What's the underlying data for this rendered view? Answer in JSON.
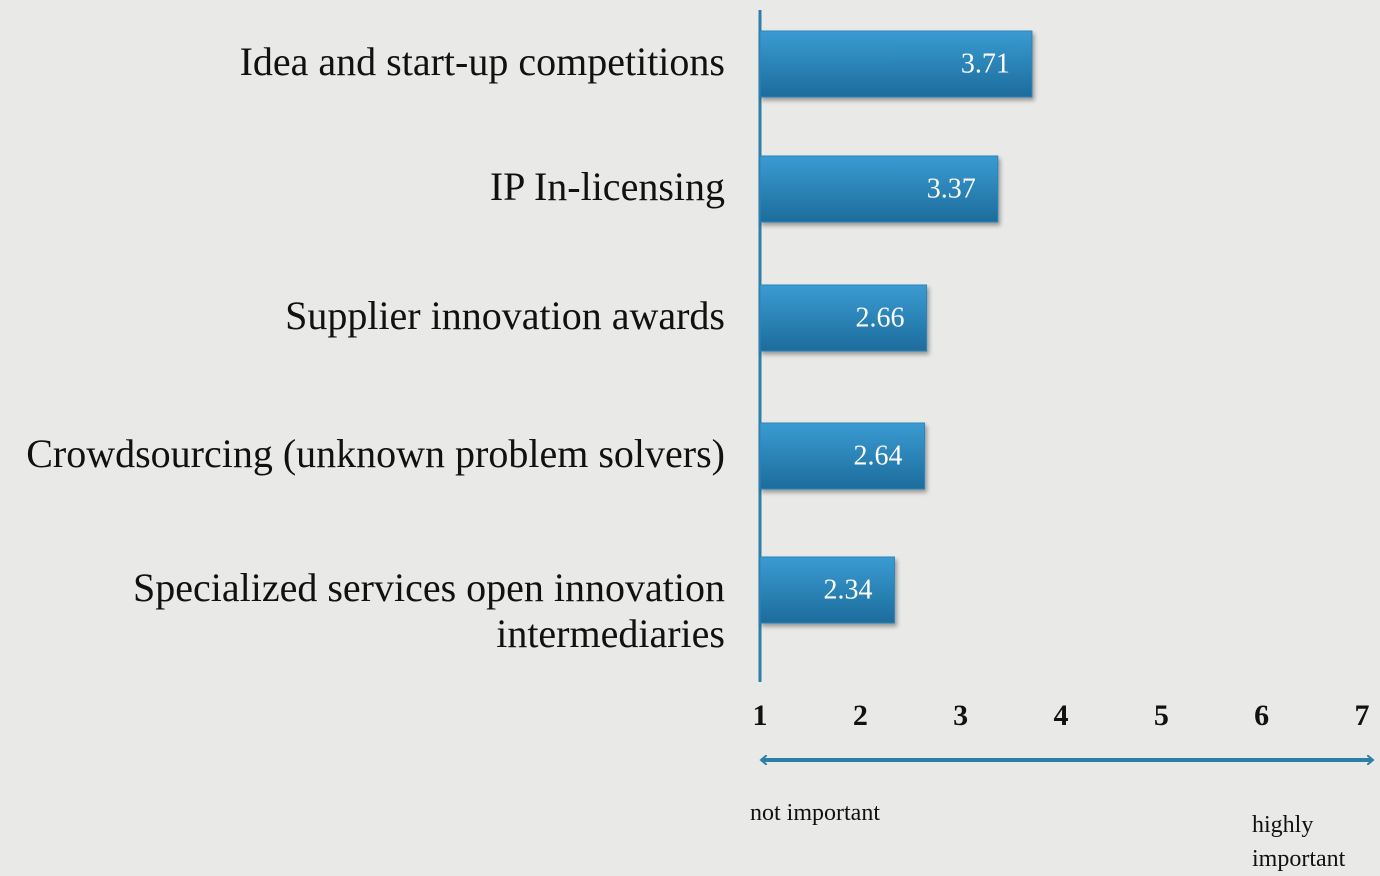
{
  "chart_data": {
    "type": "bar",
    "orientation": "horizontal",
    "categories": [
      "Idea and start-up competitions",
      "IP In-licensing",
      "Supplier innovation awards",
      "Crowdsourcing (unknown problem solvers)",
      "Specialized services open innovation intermediaries"
    ],
    "values": [
      3.71,
      3.37,
      2.66,
      2.64,
      2.34
    ],
    "color": "#2a86bd",
    "xlim": [
      1,
      7
    ],
    "xticks": [
      1,
      2,
      3,
      4,
      5,
      6,
      7
    ],
    "annotations": [
      "not important",
      "highly important"
    ]
  }
}
